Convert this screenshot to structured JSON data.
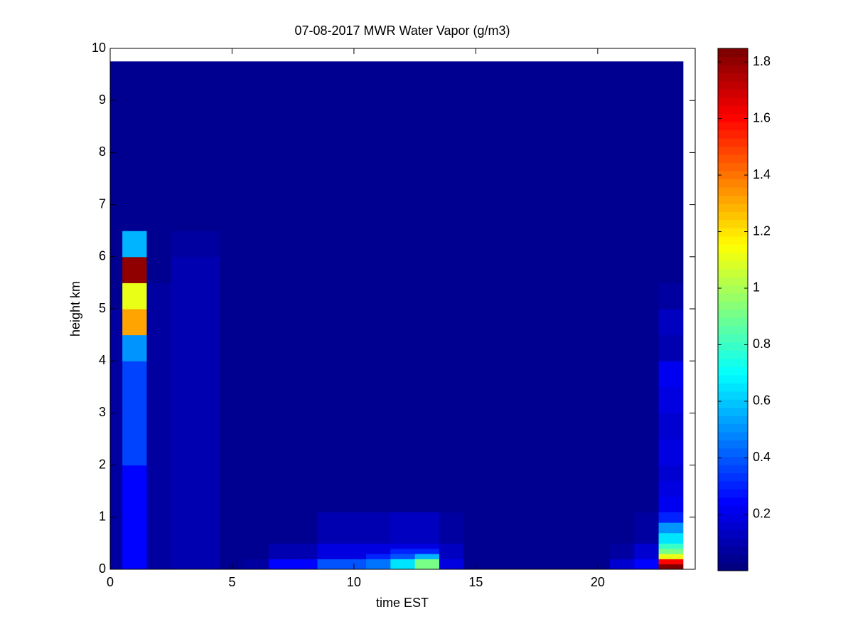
{
  "chart_data": {
    "type": "heatmap",
    "title": "07-08-2017 MWR Water Vapor (g/m3)",
    "x_label": "time EST",
    "y_label": "height km",
    "colormap": "jet",
    "x_edges": [
      0,
      0.5,
      1.5,
      2.5,
      3.5,
      4.5,
      5.5,
      6.5,
      7.5,
      8.5,
      9.5,
      10.5,
      11.5,
      12.5,
      13.5,
      14.5,
      15.5,
      16.5,
      17.5,
      18.5,
      19.5,
      20.5,
      21.5,
      22.5,
      23.5
    ],
    "y_edges": [
      0,
      0.1,
      0.2,
      0.3,
      0.4,
      0.5,
      0.7,
      0.9,
      1.1,
      1.4,
      1.7,
      2.0,
      2.5,
      3.0,
      3.5,
      4.0,
      4.5,
      5.0,
      5.5,
      6.0,
      6.5,
      7.0,
      8.0,
      9.75
    ],
    "z": [
      [
        0.06,
        0.25,
        0.06,
        0.1,
        0.1,
        0.04,
        0.08,
        0.25,
        0.25,
        0.4,
        0.4,
        0.45,
        0.65,
        0.9,
        0.2,
        0.03,
        0.03,
        0.03,
        0.03,
        0.03,
        0.05,
        0.15,
        0.25,
        1.85
      ],
      [
        0.06,
        0.25,
        0.06,
        0.1,
        0.1,
        0.04,
        0.08,
        0.25,
        0.25,
        0.4,
        0.4,
        0.45,
        0.65,
        0.9,
        0.2,
        0.03,
        0.03,
        0.03,
        0.03,
        0.03,
        0.05,
        0.15,
        0.25,
        1.6
      ],
      [
        0.06,
        0.25,
        0.06,
        0.1,
        0.1,
        0.04,
        0.03,
        0.1,
        0.1,
        0.2,
        0.2,
        0.3,
        0.4,
        0.55,
        0.12,
        0.03,
        0.03,
        0.03,
        0.03,
        0.03,
        0.05,
        0.08,
        0.15,
        1.1
      ],
      [
        0.06,
        0.25,
        0.06,
        0.1,
        0.1,
        0.04,
        0.03,
        0.1,
        0.1,
        0.2,
        0.2,
        0.2,
        0.3,
        0.3,
        0.12,
        0.03,
        0.03,
        0.03,
        0.03,
        0.03,
        0.03,
        0.08,
        0.15,
        0.9
      ],
      [
        0.06,
        0.25,
        0.06,
        0.1,
        0.1,
        0.04,
        0.03,
        0.1,
        0.1,
        0.2,
        0.2,
        0.2,
        0.2,
        0.2,
        0.12,
        0.03,
        0.03,
        0.03,
        0.03,
        0.03,
        0.03,
        0.08,
        0.15,
        0.8
      ],
      [
        0.06,
        0.25,
        0.06,
        0.1,
        0.1,
        0.04,
        0.03,
        0.03,
        0.03,
        0.1,
        0.1,
        0.1,
        0.12,
        0.12,
        0.06,
        0.03,
        0.03,
        0.03,
        0.03,
        0.03,
        0.03,
        0.03,
        0.06,
        0.65
      ],
      [
        0.06,
        0.25,
        0.06,
        0.1,
        0.1,
        0.04,
        0.03,
        0.03,
        0.03,
        0.1,
        0.1,
        0.1,
        0.12,
        0.12,
        0.06,
        0.03,
        0.03,
        0.03,
        0.03,
        0.03,
        0.03,
        0.03,
        0.06,
        0.5
      ],
      [
        0.06,
        0.25,
        0.06,
        0.1,
        0.1,
        0.04,
        0.03,
        0.03,
        0.03,
        0.1,
        0.1,
        0.1,
        0.12,
        0.12,
        0.06,
        0.03,
        0.03,
        0.03,
        0.03,
        0.03,
        0.03,
        0.03,
        0.06,
        0.3
      ],
      [
        0.06,
        0.25,
        0.06,
        0.1,
        0.1,
        0.04,
        0.03,
        0.03,
        0.03,
        0.03,
        0.03,
        0.03,
        0.03,
        0.03,
        0.03,
        0.03,
        0.03,
        0.03,
        0.03,
        0.03,
        0.03,
        0.03,
        0.03,
        0.22
      ],
      [
        0.06,
        0.25,
        0.06,
        0.1,
        0.1,
        0.04,
        0.03,
        0.03,
        0.03,
        0.03,
        0.03,
        0.03,
        0.03,
        0.03,
        0.03,
        0.03,
        0.03,
        0.03,
        0.03,
        0.03,
        0.03,
        0.03,
        0.03,
        0.2
      ],
      [
        0.06,
        0.25,
        0.06,
        0.1,
        0.1,
        0.04,
        0.03,
        0.03,
        0.03,
        0.03,
        0.03,
        0.03,
        0.03,
        0.03,
        0.03,
        0.03,
        0.03,
        0.03,
        0.03,
        0.03,
        0.03,
        0.03,
        0.03,
        0.15
      ],
      [
        0.06,
        0.35,
        0.06,
        0.1,
        0.1,
        0.04,
        0.03,
        0.03,
        0.03,
        0.03,
        0.03,
        0.03,
        0.03,
        0.03,
        0.03,
        0.03,
        0.03,
        0.03,
        0.03,
        0.03,
        0.03,
        0.03,
        0.03,
        0.2
      ],
      [
        0.06,
        0.35,
        0.06,
        0.1,
        0.1,
        0.04,
        0.03,
        0.03,
        0.03,
        0.03,
        0.03,
        0.03,
        0.03,
        0.03,
        0.03,
        0.03,
        0.03,
        0.03,
        0.03,
        0.03,
        0.03,
        0.03,
        0.03,
        0.15
      ],
      [
        0.06,
        0.35,
        0.06,
        0.1,
        0.1,
        0.04,
        0.03,
        0.03,
        0.03,
        0.03,
        0.03,
        0.03,
        0.03,
        0.03,
        0.03,
        0.03,
        0.03,
        0.03,
        0.03,
        0.03,
        0.03,
        0.03,
        0.03,
        0.18
      ],
      [
        0.06,
        0.35,
        0.06,
        0.1,
        0.1,
        0.04,
        0.03,
        0.03,
        0.03,
        0.03,
        0.03,
        0.03,
        0.03,
        0.03,
        0.03,
        0.03,
        0.03,
        0.03,
        0.03,
        0.03,
        0.03,
        0.03,
        0.03,
        0.22
      ],
      [
        0.06,
        0.5,
        0.06,
        0.1,
        0.1,
        0.04,
        0.03,
        0.03,
        0.03,
        0.03,
        0.03,
        0.03,
        0.03,
        0.03,
        0.03,
        0.03,
        0.03,
        0.03,
        0.03,
        0.03,
        0.03,
        0.03,
        0.03,
        0.1
      ],
      [
        0.06,
        1.3,
        0.06,
        0.1,
        0.1,
        0.03,
        0.03,
        0.03,
        0.03,
        0.03,
        0.03,
        0.03,
        0.03,
        0.03,
        0.03,
        0.03,
        0.03,
        0.03,
        0.03,
        0.03,
        0.03,
        0.03,
        0.03,
        0.12
      ],
      [
        0.03,
        1.1,
        0.06,
        0.1,
        0.1,
        0.03,
        0.03,
        0.03,
        0.03,
        0.03,
        0.03,
        0.03,
        0.03,
        0.03,
        0.03,
        0.03,
        0.03,
        0.03,
        0.03,
        0.03,
        0.03,
        0.03,
        0.03,
        0.08
      ],
      [
        0.03,
        1.8,
        0.03,
        0.1,
        0.1,
        0.03,
        0.03,
        0.03,
        0.03,
        0.03,
        0.03,
        0.03,
        0.03,
        0.03,
        0.03,
        0.03,
        0.03,
        0.03,
        0.03,
        0.03,
        0.03,
        0.03,
        0.03,
        0.03
      ],
      [
        0.03,
        0.55,
        0.03,
        0.06,
        0.06,
        0.03,
        0.03,
        0.03,
        0.03,
        0.03,
        0.03,
        0.03,
        0.03,
        0.03,
        0.03,
        0.03,
        0.03,
        0.03,
        0.03,
        0.03,
        0.03,
        0.03,
        0.03,
        0.03
      ],
      [
        0.03,
        0.03,
        0.03,
        0.03,
        0.03,
        0.03,
        0.03,
        0.03,
        0.03,
        0.03,
        0.03,
        0.03,
        0.03,
        0.03,
        0.03,
        0.03,
        0.03,
        0.03,
        0.03,
        0.03,
        0.03,
        0.03,
        0.03,
        0.03
      ],
      [
        0.03,
        0.03,
        0.03,
        0.03,
        0.03,
        0.03,
        0.03,
        0.03,
        0.03,
        0.03,
        0.03,
        0.03,
        0.03,
        0.03,
        0.03,
        0.03,
        0.03,
        0.03,
        0.03,
        0.03,
        0.03,
        0.03,
        0.03,
        0.03
      ],
      [
        0.03,
        0.03,
        0.03,
        0.03,
        0.03,
        0.03,
        0.03,
        0.03,
        0.03,
        0.03,
        0.03,
        0.03,
        0.03,
        0.03,
        0.03,
        0.03,
        0.03,
        0.03,
        0.03,
        0.03,
        0.03,
        0.03,
        0.03,
        0.03
      ]
    ],
    "xlim": [
      0,
      24
    ],
    "xticks": [
      0,
      5,
      10,
      15,
      20
    ],
    "ylim": [
      0,
      10
    ],
    "yticks": [
      0,
      1,
      2,
      3,
      4,
      5,
      6,
      7,
      8,
      9,
      10
    ],
    "clim": [
      0.001,
      1.848
    ],
    "cticks": [
      0.2,
      0.4,
      0.6,
      0.8,
      1,
      1.2,
      1.4,
      1.6,
      1.8
    ]
  }
}
